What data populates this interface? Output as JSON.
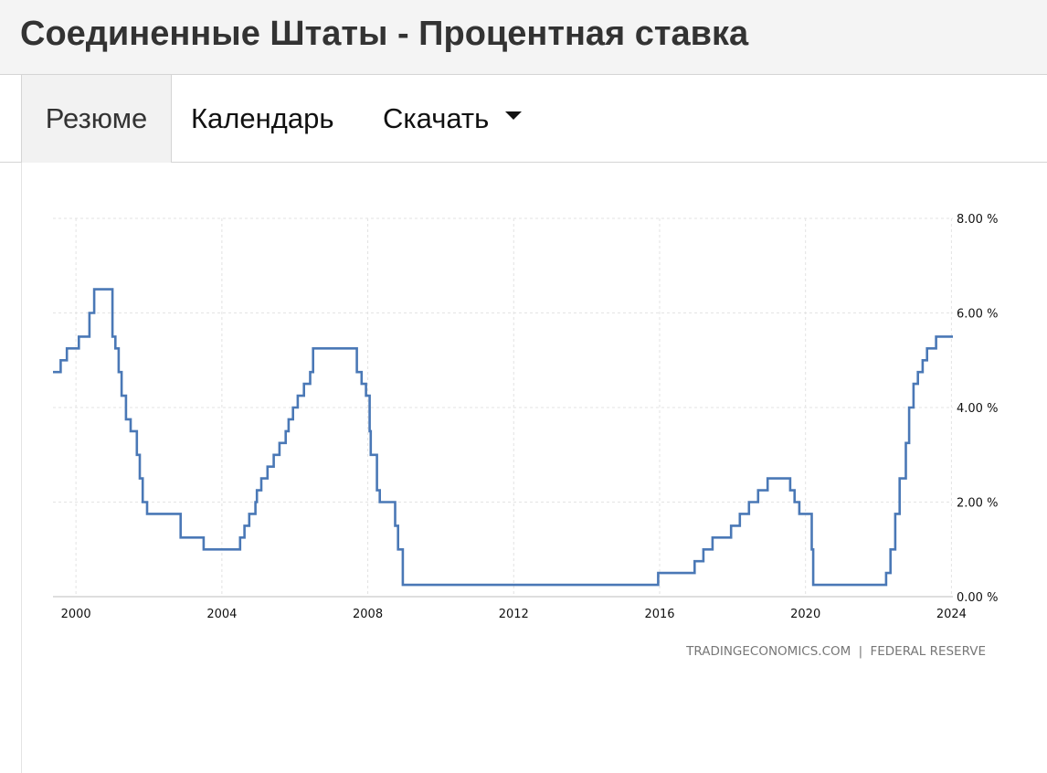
{
  "page": {
    "title": "Соединенные Штаты - Процентная ставка"
  },
  "tabs": [
    {
      "label": "Резюме"
    },
    {
      "label": "Календарь"
    },
    {
      "label": "Скачать"
    }
  ],
  "source": {
    "left": "TRADINGECONOMICS.COM",
    "separator": "|",
    "right": "FEDERAL RESERVE"
  },
  "chart_data": {
    "type": "line",
    "title": "",
    "xlabel": "",
    "ylabel": "",
    "x_ticks": [
      "2000",
      "2004",
      "2008",
      "2012",
      "2016",
      "2020",
      "2024"
    ],
    "y_ticks": [
      "0.00 %",
      "2.00 %",
      "4.00 %",
      "6.00 %",
      "8.00 %"
    ],
    "xlim": [
      1999.37,
      2024.04
    ],
    "ylim": [
      0,
      8
    ],
    "y_axis_position": "right",
    "grid": true,
    "line_color": "#4a78b6",
    "series": [
      {
        "step": true,
        "points": [
          [
            1999.37,
            4.75
          ],
          [
            1999.58,
            5.0
          ],
          [
            1999.75,
            5.25
          ],
          [
            1999.96,
            5.25
          ],
          [
            2000.08,
            5.5
          ],
          [
            2000.25,
            5.5
          ],
          [
            2000.37,
            6.0
          ],
          [
            2000.5,
            6.5
          ],
          [
            2001.0,
            5.5
          ],
          [
            2001.08,
            5.25
          ],
          [
            2001.17,
            4.75
          ],
          [
            2001.25,
            4.25
          ],
          [
            2001.37,
            3.75
          ],
          [
            2001.5,
            3.5
          ],
          [
            2001.67,
            3.0
          ],
          [
            2001.75,
            2.5
          ],
          [
            2001.83,
            2.0
          ],
          [
            2001.95,
            1.75
          ],
          [
            2002.87,
            1.25
          ],
          [
            2003.5,
            1.0
          ],
          [
            2004.5,
            1.25
          ],
          [
            2004.62,
            1.5
          ],
          [
            2004.75,
            1.75
          ],
          [
            2004.92,
            2.0
          ],
          [
            2004.96,
            2.25
          ],
          [
            2005.08,
            2.5
          ],
          [
            2005.25,
            2.75
          ],
          [
            2005.42,
            3.0
          ],
          [
            2005.58,
            3.25
          ],
          [
            2005.75,
            3.5
          ],
          [
            2005.83,
            3.75
          ],
          [
            2005.95,
            4.0
          ],
          [
            2006.08,
            4.25
          ],
          [
            2006.25,
            4.5
          ],
          [
            2006.42,
            4.75
          ],
          [
            2006.5,
            5.25
          ],
          [
            2007.7,
            4.75
          ],
          [
            2007.83,
            4.5
          ],
          [
            2007.95,
            4.25
          ],
          [
            2008.05,
            3.5
          ],
          [
            2008.08,
            3.0
          ],
          [
            2008.25,
            2.25
          ],
          [
            2008.33,
            2.0
          ],
          [
            2008.75,
            1.5
          ],
          [
            2008.83,
            1.0
          ],
          [
            2008.96,
            0.25
          ],
          [
            2015.96,
            0.5
          ],
          [
            2016.96,
            0.75
          ],
          [
            2017.2,
            1.0
          ],
          [
            2017.45,
            1.25
          ],
          [
            2017.96,
            1.5
          ],
          [
            2018.2,
            1.75
          ],
          [
            2018.45,
            2.0
          ],
          [
            2018.7,
            2.25
          ],
          [
            2018.96,
            2.5
          ],
          [
            2019.58,
            2.25
          ],
          [
            2019.7,
            2.0
          ],
          [
            2019.83,
            1.75
          ],
          [
            2020.17,
            1.0
          ],
          [
            2020.21,
            0.25
          ],
          [
            2022.21,
            0.5
          ],
          [
            2022.33,
            1.0
          ],
          [
            2022.46,
            1.75
          ],
          [
            2022.58,
            2.5
          ],
          [
            2022.75,
            3.25
          ],
          [
            2022.84,
            4.0
          ],
          [
            2022.96,
            4.5
          ],
          [
            2023.08,
            4.75
          ],
          [
            2023.21,
            5.0
          ],
          [
            2023.33,
            5.25
          ],
          [
            2023.58,
            5.5
          ],
          [
            2024.04,
            5.5
          ]
        ]
      }
    ]
  }
}
